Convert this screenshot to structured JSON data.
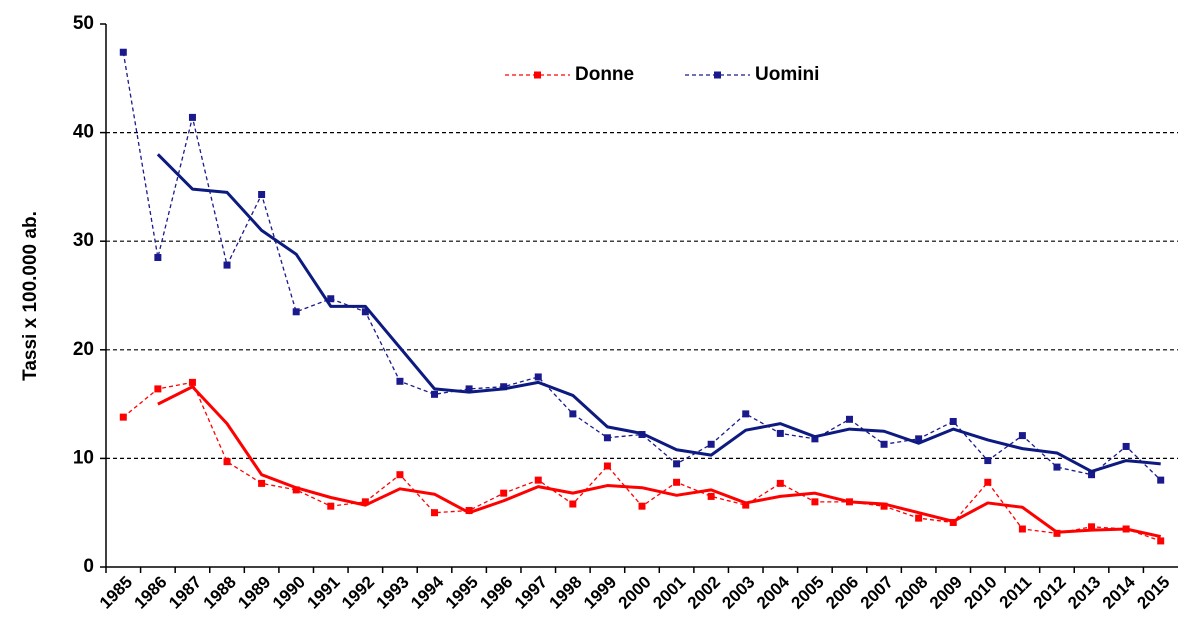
{
  "chart_data": {
    "type": "line",
    "y_label": "Tassi x 100.000 ab.",
    "categories": [
      "1985",
      "1986",
      "1987",
      "1988",
      "1989",
      "1990",
      "1991",
      "1992",
      "1993",
      "1994",
      "1995",
      "1996",
      "1997",
      "1998",
      "1999",
      "2000",
      "2001",
      "2002",
      "2003",
      "2004",
      "2005",
      "2006",
      "2007",
      "2008",
      "2009",
      "2010",
      "2011",
      "2012",
      "2013",
      "2014",
      "2015"
    ],
    "series": [
      {
        "name": "Donne",
        "color": "#ff0000",
        "style": "dashed",
        "markers": true,
        "values": [
          13.8,
          16.4,
          17.0,
          9.7,
          7.7,
          7.1,
          5.6,
          6.0,
          8.5,
          5.0,
          5.2,
          6.8,
          8.0,
          5.8,
          9.3,
          5.6,
          7.8,
          6.5,
          5.7,
          7.7,
          6.0,
          6.0,
          5.6,
          4.5,
          4.1,
          7.8,
          3.5,
          3.1,
          3.7,
          3.5,
          2.4
        ]
      },
      {
        "name": "Uomini",
        "color": "#1a1a8c",
        "style": "dashed",
        "markers": true,
        "values": [
          47.4,
          28.5,
          41.4,
          27.8,
          34.3,
          23.5,
          24.7,
          23.5,
          17.1,
          15.9,
          16.4,
          16.6,
          17.5,
          14.1,
          11.9,
          12.2,
          9.5,
          11.3,
          14.1,
          12.3,
          11.8,
          13.6,
          11.3,
          11.8,
          13.4,
          9.8,
          12.1,
          9.2,
          8.5,
          11.1,
          8.0
        ]
      },
      {
        "color": "#ff0000",
        "style": "solid",
        "markers": false,
        "values": [
          null,
          15.0,
          16.6,
          13.2,
          8.5,
          7.3,
          6.4,
          5.7,
          7.2,
          6.7,
          5.0,
          6.1,
          7.4,
          6.8,
          7.5,
          7.3,
          6.6,
          7.1,
          5.9,
          6.5,
          6.8,
          6.0,
          5.8,
          5.0,
          4.2,
          5.9,
          5.5,
          3.2,
          3.4,
          3.5,
          2.8
        ]
      },
      {
        "color": "#0d1a80",
        "style": "solid",
        "markers": false,
        "values": [
          null,
          38.0,
          34.8,
          34.5,
          31.0,
          28.8,
          24.0,
          24.0,
          20.2,
          16.4,
          16.1,
          16.4,
          17.0,
          15.8,
          12.9,
          12.3,
          10.8,
          10.3,
          12.6,
          13.2,
          12.0,
          12.7,
          12.5,
          11.4,
          12.7,
          11.7,
          10.9,
          10.5,
          8.8,
          9.8,
          9.5
        ]
      }
    ],
    "ylim": [
      0,
      50
    ],
    "yticks": [
      0,
      10,
      20,
      30,
      40,
      50
    ],
    "grid": true,
    "legend": "top"
  }
}
